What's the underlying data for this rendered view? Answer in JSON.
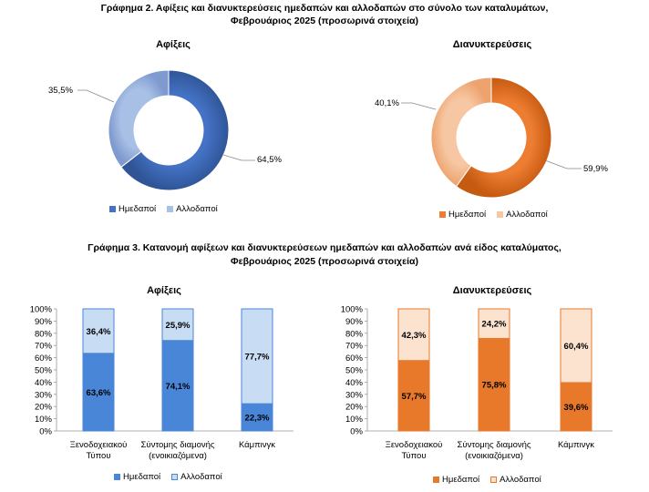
{
  "titles": {
    "chart2_line1": "Γράφημα 2. Αφίξεις και διανυκτερεύσεις ημεδαπών και αλλοδαπών στο σύνολο των καταλυμάτων,",
    "chart2_line2": "Φεβρουάριος 2025  (προσωρινά στοιχεία)",
    "chart3_line1": "Γράφημα 3. Κατανομή αφίξεων και διανυκτερεύσεων ημεδαπών και αλλοδαπών ανά είδος καταλύματος,",
    "chart3_line2": "Φεβρουάριος 2025 (προσωρινά στοιχεία)"
  },
  "colors": {
    "blue_dom": "#4472C4",
    "blue_for": "#A9C0E6",
    "orange_dom": "#ED7D31",
    "orange_for": "#F6C7A2",
    "bar_blue_dom": "#4A86D8",
    "bar_blue_for": "#C8DCF4",
    "bar_orange_dom": "#E8782A",
    "bar_orange_for": "#FCE3CF"
  },
  "chart_data": [
    {
      "type": "pie",
      "title": "Αφίξεις",
      "categories": [
        "Ημεδαποί",
        "Αλλοδαποί"
      ],
      "values": [
        64.5,
        35.5
      ],
      "labels": [
        "64,5%",
        "35,5%"
      ],
      "legend": [
        "Ημεδαποί",
        "Αλλοδαποί"
      ]
    },
    {
      "type": "pie",
      "title": "Διανυκτερεύσεις",
      "categories": [
        "Ημεδαποί",
        "Αλλοδαποί"
      ],
      "values": [
        59.9,
        40.1
      ],
      "labels": [
        "59,9%",
        "40,1%"
      ],
      "legend": [
        "Ημεδαποί",
        "Αλλοδαποί"
      ]
    },
    {
      "type": "bar",
      "title": "Αφίξεις",
      "categories": [
        "Ξενοδοχειακού\nΤύπου",
        "Σύντομης διαμονής\n(ενοικιαζόμενα)",
        "Κάμπινγκ"
      ],
      "series": [
        {
          "name": "Ημεδαποί",
          "values": [
            63.6,
            74.1,
            22.3
          ],
          "labels": [
            "63,6%",
            "74,1%",
            "22,3%"
          ]
        },
        {
          "name": "Αλλοδαποί",
          "values": [
            36.4,
            25.9,
            77.7
          ],
          "labels": [
            "36,4%",
            "25,9%",
            "77,7%"
          ]
        }
      ],
      "yticks": [
        "0%",
        "10%",
        "20%",
        "30%",
        "40%",
        "50%",
        "60%",
        "70%",
        "80%",
        "90%",
        "100%"
      ],
      "ylim": [
        0,
        100
      ]
    },
    {
      "type": "bar",
      "title": "Διανυκτερεύσεις",
      "categories": [
        "Ξενοδοχειακού\nΤύπου",
        "Σύντομης διαμονής\n(ενοικιαζόμενα)",
        "Κάμπινγκ"
      ],
      "series": [
        {
          "name": "Ημεδαποί",
          "values": [
            57.7,
            75.8,
            39.6
          ],
          "labels": [
            "57,7%",
            "75,8%",
            "39,6%"
          ]
        },
        {
          "name": "Αλλοδαποί",
          "values": [
            42.3,
            24.2,
            60.4
          ],
          "labels": [
            "42,3%",
            "24,2%",
            "60,4%"
          ]
        }
      ],
      "yticks": [
        "0%",
        "10%",
        "20%",
        "30%",
        "40%",
        "50%",
        "60%",
        "70%",
        "80%",
        "90%",
        "100%"
      ],
      "ylim": [
        0,
        100
      ]
    }
  ]
}
